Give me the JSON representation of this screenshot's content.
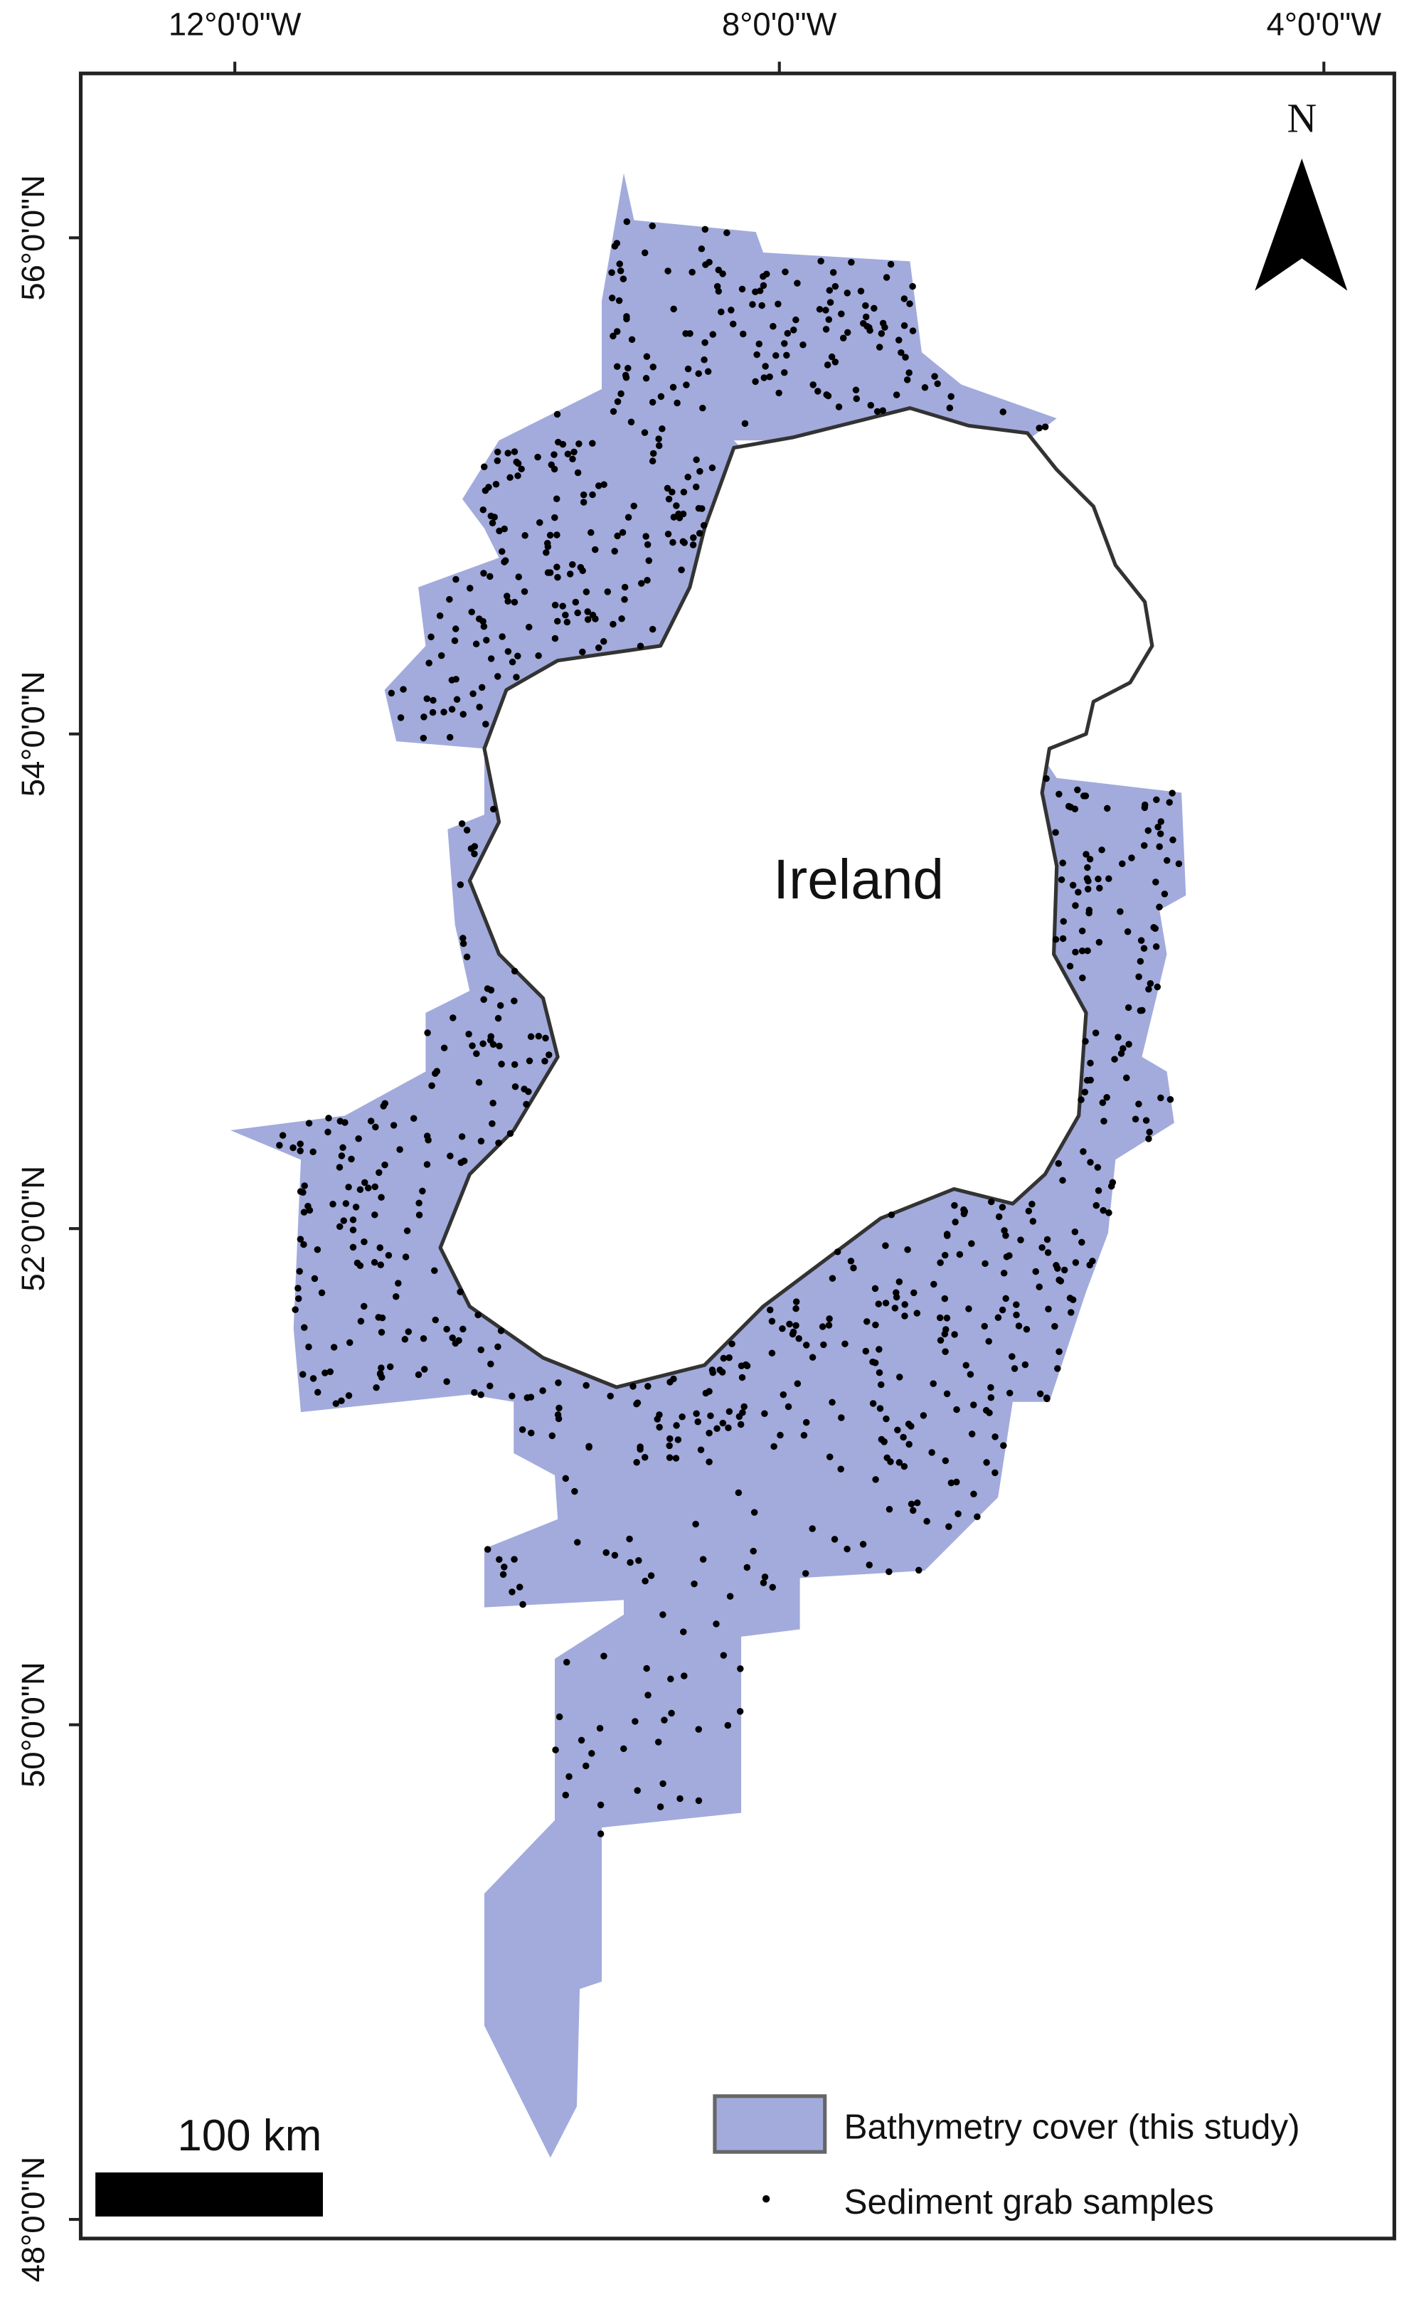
{
  "map": {
    "longitude_labels": [
      "12°0'0\"W",
      "8°0'0\"W",
      "4°0'0\"W"
    ],
    "latitude_labels": [
      "56°0'0\"N",
      "54°0'0\"N",
      "52°0'0\"N",
      "50°0'0\"N",
      "48°0'0\"N"
    ],
    "land_label": "Ireland",
    "north_label": "N",
    "scale_label": "100 km",
    "legend": [
      {
        "label": "Bathymetry cover (this study)",
        "color": "#a2abdc"
      },
      {
        "label": "Sediment grab samples",
        "color": "#000000"
      }
    ]
  }
}
